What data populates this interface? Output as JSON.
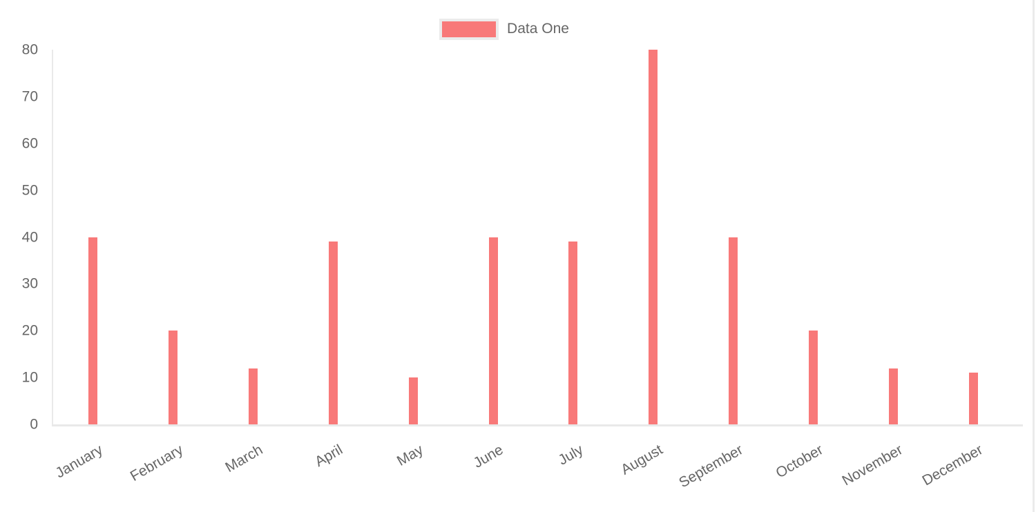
{
  "chart_data": {
    "type": "bar",
    "title": "",
    "categories": [
      "January",
      "February",
      "March",
      "April",
      "May",
      "June",
      "July",
      "August",
      "September",
      "October",
      "November",
      "December"
    ],
    "series": [
      {
        "name": "Data One",
        "color": "#f87979",
        "values": [
          40,
          20,
          12,
          39,
          10,
          40,
          39,
          80,
          40,
          20,
          12,
          11
        ]
      }
    ],
    "xlabel": "",
    "ylabel": "",
    "ylim": [
      0,
      80
    ],
    "yticks": [
      0,
      10,
      20,
      30,
      40,
      50,
      60,
      70,
      80
    ],
    "grid": false,
    "legend_position": "top",
    "x_label_rotation_deg": -30
  },
  "colors": {
    "bar_fill": "#f87979",
    "axis_line": "#e9e9e9",
    "axis_text": "#666666",
    "legend_box_border": "#ebebeb",
    "background": "#ffffff"
  }
}
